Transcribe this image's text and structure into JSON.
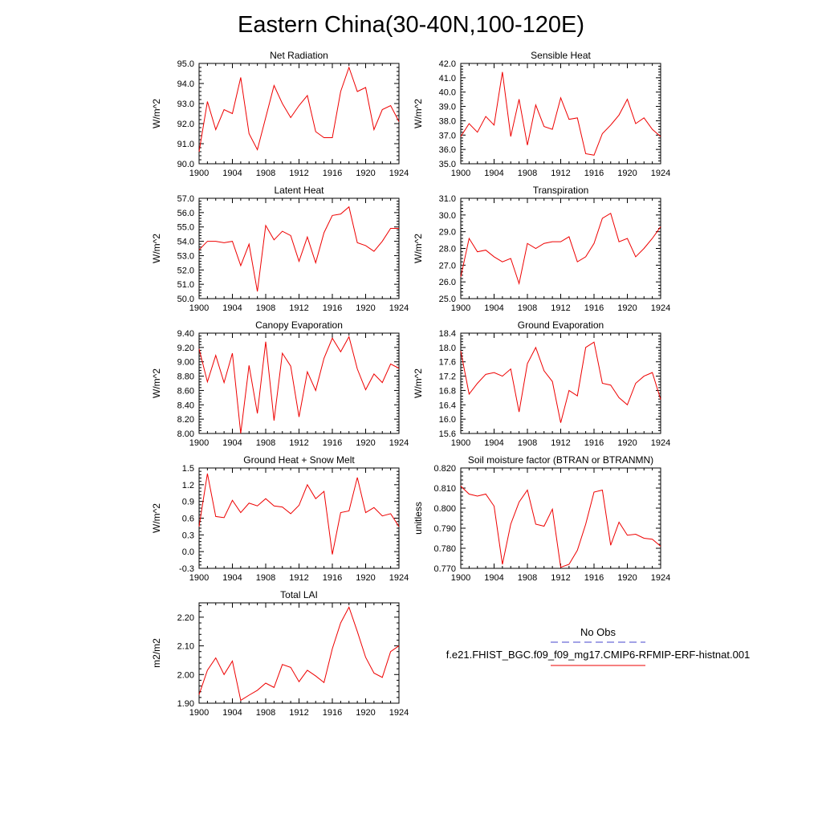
{
  "page_title": "Eastern China(30-40N,100-120E)",
  "legend": {
    "obs_label": "No Obs",
    "model_label": "f.e21.FHIST_BGC.f09_f09_mg17.CMIP6-RFMIP-ERF-histnat.001",
    "obs_color": "#4444cc",
    "model_color": "#ee0000"
  },
  "chart_data": [
    {
      "type": "line",
      "title": "Net Radiation",
      "ylabel": "W/m^2",
      "xlabel": "",
      "x": [
        1900,
        1901,
        1902,
        1903,
        1904,
        1905,
        1906,
        1907,
        1908,
        1909,
        1910,
        1911,
        1912,
        1913,
        1914,
        1915,
        1916,
        1917,
        1918,
        1919,
        1920,
        1921,
        1922,
        1923,
        1924
      ],
      "values": [
        90.6,
        93.1,
        91.7,
        92.7,
        92.5,
        94.3,
        91.5,
        90.7,
        92.3,
        93.9,
        93.0,
        92.3,
        92.9,
        93.4,
        91.6,
        91.3,
        91.3,
        93.6,
        94.8,
        93.6,
        93.8,
        91.7,
        92.7,
        92.9,
        92.1
      ],
      "xlim": [
        1900,
        1924
      ],
      "ylim": [
        90,
        95
      ],
      "xticks": [
        "1900",
        "1904",
        "1908",
        "1912",
        "1916",
        "1920",
        "1924"
      ],
      "yticks": [
        "90.0",
        "91.0",
        "92.0",
        "93.0",
        "94.0",
        "95.0"
      ]
    },
    {
      "type": "line",
      "title": "Sensible Heat",
      "ylabel": "W/m^2",
      "xlabel": "",
      "x": [
        1900,
        1901,
        1902,
        1903,
        1904,
        1905,
        1906,
        1907,
        1908,
        1909,
        1910,
        1911,
        1912,
        1913,
        1914,
        1915,
        1916,
        1917,
        1918,
        1919,
        1920,
        1921,
        1922,
        1923,
        1924
      ],
      "values": [
        36.9,
        37.8,
        37.2,
        38.3,
        37.7,
        41.4,
        36.9,
        39.5,
        36.3,
        39.1,
        37.6,
        37.4,
        39.6,
        38.1,
        38.2,
        35.7,
        35.6,
        37.1,
        37.7,
        38.4,
        39.5,
        37.8,
        38.2,
        37.4,
        36.9
      ],
      "xlim": [
        1900,
        1924
      ],
      "ylim": [
        35,
        42
      ],
      "xticks": [
        "1900",
        "1904",
        "1908",
        "1912",
        "1916",
        "1920",
        "1924"
      ],
      "yticks": [
        "35.0",
        "36.0",
        "37.0",
        "38.0",
        "39.0",
        "40.0",
        "41.0",
        "42.0"
      ]
    },
    {
      "type": "line",
      "title": "Latent Heat",
      "ylabel": "W/m^2",
      "xlabel": "",
      "x": [
        1900,
        1901,
        1902,
        1903,
        1904,
        1905,
        1906,
        1907,
        1908,
        1909,
        1910,
        1911,
        1912,
        1913,
        1914,
        1915,
        1916,
        1917,
        1918,
        1919,
        1920,
        1921,
        1922,
        1923,
        1924
      ],
      "values": [
        53.4,
        54.0,
        54.0,
        53.9,
        54.0,
        52.3,
        53.8,
        50.5,
        55.1,
        54.1,
        54.7,
        54.4,
        52.6,
        54.3,
        52.5,
        54.6,
        55.8,
        55.9,
        56.4,
        53.9,
        53.7,
        53.3,
        54.0,
        54.9,
        54.9
      ],
      "xlim": [
        1900,
        1924
      ],
      "ylim": [
        50,
        57
      ],
      "xticks": [
        "1900",
        "1904",
        "1908",
        "1912",
        "1916",
        "1920",
        "1924"
      ],
      "yticks": [
        "50.0",
        "51.0",
        "52.0",
        "53.0",
        "54.0",
        "55.0",
        "56.0",
        "57.0"
      ]
    },
    {
      "type": "line",
      "title": "Transpiration",
      "ylabel": "W/m^2",
      "xlabel": "",
      "x": [
        1900,
        1901,
        1902,
        1903,
        1904,
        1905,
        1906,
        1907,
        1908,
        1909,
        1910,
        1911,
        1912,
        1913,
        1914,
        1915,
        1916,
        1917,
        1918,
        1919,
        1920,
        1921,
        1922,
        1923,
        1924
      ],
      "values": [
        26.3,
        28.6,
        27.8,
        27.9,
        27.5,
        27.2,
        27.4,
        25.9,
        28.3,
        28.0,
        28.3,
        28.4,
        28.4,
        28.7,
        27.2,
        27.5,
        28.3,
        29.8,
        30.1,
        28.4,
        28.6,
        27.5,
        28.0,
        28.6,
        29.3
      ],
      "xlim": [
        1900,
        1924
      ],
      "ylim": [
        25,
        31
      ],
      "xticks": [
        "1900",
        "1904",
        "1908",
        "1912",
        "1916",
        "1920",
        "1924"
      ],
      "yticks": [
        "25.0",
        "26.0",
        "27.0",
        "28.0",
        "29.0",
        "30.0",
        "31.0"
      ]
    },
    {
      "type": "line",
      "title": "Canopy Evaporation",
      "ylabel": "W/m^2",
      "xlabel": "",
      "x": [
        1900,
        1901,
        1902,
        1903,
        1904,
        1905,
        1906,
        1907,
        1908,
        1909,
        1910,
        1911,
        1912,
        1913,
        1914,
        1915,
        1916,
        1917,
        1918,
        1919,
        1920,
        1921,
        1922,
        1923,
        1924
      ],
      "values": [
        9.18,
        8.72,
        9.09,
        8.71,
        9.12,
        8.0,
        8.95,
        8.28,
        9.28,
        8.18,
        9.12,
        8.94,
        8.23,
        8.86,
        8.6,
        9.05,
        9.33,
        9.14,
        9.35,
        8.9,
        8.61,
        8.83,
        8.71,
        8.97,
        8.91
      ],
      "xlim": [
        1900,
        1924
      ],
      "ylim": [
        8.0,
        9.4
      ],
      "xticks": [
        "1900",
        "1904",
        "1908",
        "1912",
        "1916",
        "1920",
        "1924"
      ],
      "yticks": [
        "8.00",
        "8.20",
        "8.40",
        "8.60",
        "8.80",
        "9.00",
        "9.20",
        "9.40"
      ]
    },
    {
      "type": "line",
      "title": "Ground Evaporation",
      "ylabel": "W/m^2",
      "xlabel": "",
      "x": [
        1900,
        1901,
        1902,
        1903,
        1904,
        1905,
        1906,
        1907,
        1908,
        1909,
        1910,
        1911,
        1912,
        1913,
        1914,
        1915,
        1916,
        1917,
        1918,
        1919,
        1920,
        1921,
        1922,
        1923,
        1924
      ],
      "values": [
        17.9,
        16.7,
        17.0,
        17.25,
        17.3,
        17.2,
        17.4,
        16.2,
        17.55,
        18.0,
        17.35,
        17.05,
        15.9,
        16.8,
        16.65,
        18.0,
        18.15,
        17.0,
        16.95,
        16.6,
        16.4,
        17.0,
        17.2,
        17.3,
        16.55
      ],
      "xlim": [
        1900,
        1924
      ],
      "ylim": [
        15.6,
        18.4
      ],
      "xticks": [
        "1900",
        "1904",
        "1908",
        "1912",
        "1916",
        "1920",
        "1924"
      ],
      "yticks": [
        "15.6",
        "16.0",
        "16.4",
        "16.8",
        "17.2",
        "17.6",
        "18.0",
        "18.4"
      ]
    },
    {
      "type": "line",
      "title": "Ground Heat + Snow Melt",
      "ylabel": "W/m^2",
      "xlabel": "",
      "x": [
        1900,
        1901,
        1902,
        1903,
        1904,
        1905,
        1906,
        1907,
        1908,
        1909,
        1910,
        1911,
        1912,
        1913,
        1914,
        1915,
        1916,
        1917,
        1918,
        1919,
        1920,
        1921,
        1922,
        1923,
        1924
      ],
      "values": [
        0.45,
        1.4,
        0.63,
        0.61,
        0.92,
        0.7,
        0.87,
        0.82,
        0.95,
        0.82,
        0.8,
        0.68,
        0.83,
        1.2,
        0.95,
        1.08,
        -0.05,
        0.7,
        0.73,
        1.33,
        0.7,
        0.79,
        0.64,
        0.68,
        0.45
      ],
      "xlim": [
        1900,
        1924
      ],
      "ylim": [
        -0.3,
        1.5
      ],
      "xticks": [
        "1900",
        "1904",
        "1908",
        "1912",
        "1916",
        "1920",
        "1924"
      ],
      "yticks": [
        "-0.3",
        "0.0",
        "0.3",
        "0.6",
        "0.9",
        "1.2",
        "1.5"
      ]
    },
    {
      "type": "line",
      "title": "Soil moisture factor (BTRAN or BTRANMN)",
      "ylabel": "unitless",
      "xlabel": "",
      "x": [
        1900,
        1901,
        1902,
        1903,
        1904,
        1905,
        1906,
        1907,
        1908,
        1909,
        1910,
        1911,
        1912,
        1913,
        1914,
        1915,
        1916,
        1917,
        1918,
        1919,
        1920,
        1921,
        1922,
        1923,
        1924
      ],
      "values": [
        0.811,
        0.807,
        0.806,
        0.807,
        0.801,
        0.772,
        0.792,
        0.803,
        0.809,
        0.792,
        0.791,
        0.7995,
        0.7705,
        0.772,
        0.779,
        0.792,
        0.808,
        0.809,
        0.7815,
        0.793,
        0.7865,
        0.787,
        0.785,
        0.7845,
        0.781
      ],
      "xlim": [
        1900,
        1924
      ],
      "ylim": [
        0.77,
        0.82
      ],
      "xticks": [
        "1900",
        "1904",
        "1908",
        "1912",
        "1916",
        "1920",
        "1924"
      ],
      "yticks": [
        "0.770",
        "0.780",
        "0.790",
        "0.800",
        "0.810",
        "0.820"
      ]
    },
    {
      "type": "line",
      "title": "Total LAI",
      "ylabel": "m2/m2",
      "xlabel": "",
      "x": [
        1900,
        1901,
        1902,
        1903,
        1904,
        1905,
        1906,
        1907,
        1908,
        1909,
        1910,
        1911,
        1912,
        1913,
        1914,
        1915,
        1916,
        1917,
        1918,
        1919,
        1920,
        1921,
        1922,
        1923,
        1924
      ],
      "values": [
        1.93,
        2.015,
        2.058,
        2.0,
        2.047,
        1.91,
        1.928,
        1.945,
        1.97,
        1.955,
        2.035,
        2.025,
        1.975,
        2.015,
        1.995,
        1.972,
        2.09,
        2.18,
        2.235,
        2.15,
        2.06,
        2.005,
        1.99,
        2.08,
        2.1
      ],
      "xlim": [
        1900,
        1924
      ],
      "ylim": [
        1.9,
        2.25
      ],
      "xticks": [
        "1900",
        "1904",
        "1908",
        "1912",
        "1916",
        "1920",
        "1924"
      ],
      "yticks": [
        "1.90",
        "2.00",
        "2.10",
        "2.20"
      ]
    }
  ]
}
